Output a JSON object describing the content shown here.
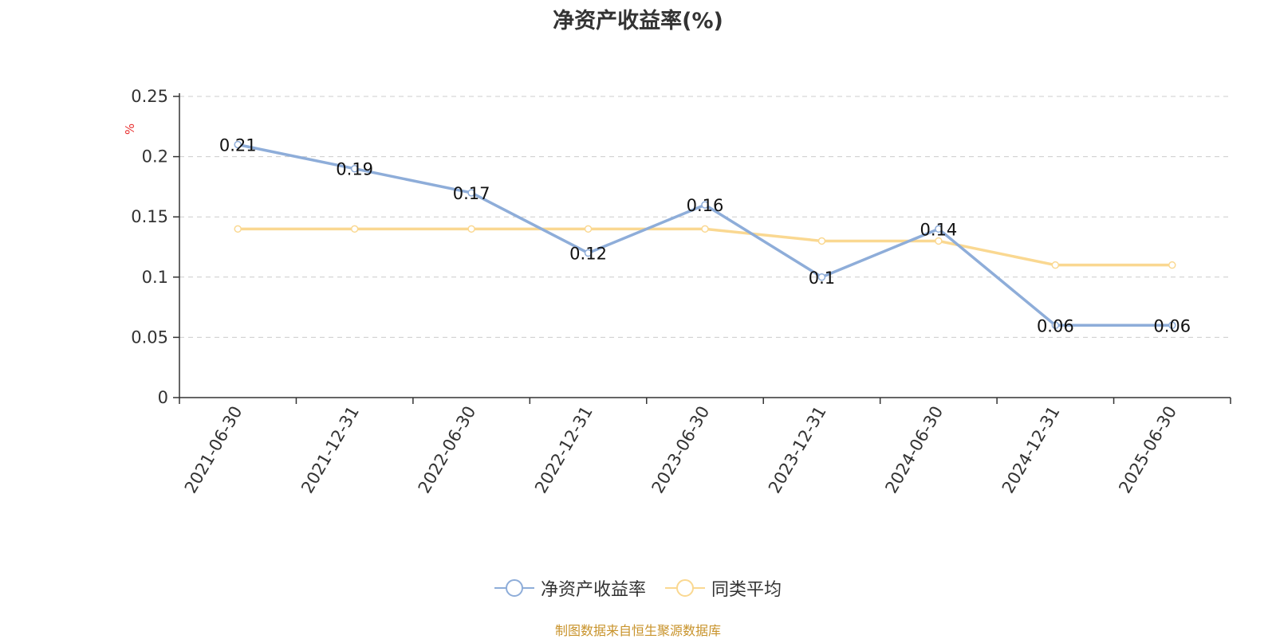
{
  "title": "净资产收益率(%)",
  "source": "制图数据来自恒生聚源数据库",
  "colors": {
    "series_1": "#8eadd9",
    "series_2": "#fad891",
    "axis": "#333333",
    "grid": "#cccccc",
    "unit_label": "#e83030",
    "source_text": "#c8932b"
  },
  "chart_data": {
    "type": "line",
    "title": "净资产收益率(%)",
    "ylabel": "%",
    "xlabel": "",
    "ylim": [
      0,
      0.25
    ],
    "yticks": [
      "0",
      "0.05",
      "0.1",
      "0.15",
      "0.2",
      "0.25"
    ],
    "grid": true,
    "legend_position": "bottom",
    "categories": [
      "2021-06-30",
      "2021-12-31",
      "2022-06-30",
      "2022-12-31",
      "2023-06-30",
      "2023-12-31",
      "2024-06-30",
      "2024-12-31",
      "2025-06-30"
    ],
    "series": [
      {
        "name": "净资产收益率",
        "values": [
          0.21,
          0.19,
          0.17,
          0.12,
          0.16,
          0.1,
          0.14,
          0.06,
          0.06
        ],
        "labels": [
          "0.21",
          "0.19",
          "0.17",
          "0.12",
          "0.16",
          "0.1",
          "0.14",
          "0.06",
          "0.06"
        ]
      },
      {
        "name": "同类平均",
        "values": [
          0.14,
          0.14,
          0.14,
          0.14,
          0.14,
          0.13,
          0.13,
          0.11,
          0.11
        ]
      }
    ]
  }
}
